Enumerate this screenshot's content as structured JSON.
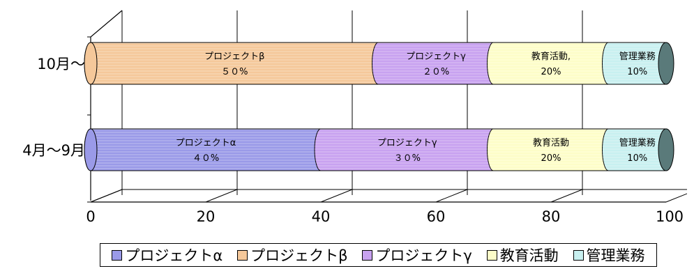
{
  "chart_data": {
    "type": "bar",
    "orientation": "horizontal",
    "stacked": true,
    "style": "3d-cylinder",
    "categories": [
      "10月～",
      "4月～9月"
    ],
    "series": [
      {
        "name": "プロジェクトα",
        "color": "#9a9ae8",
        "values": [
          0,
          40
        ],
        "labels": [
          "",
          "プロジェクトα\n４０%"
        ]
      },
      {
        "name": "プロジェクトβ",
        "color": "#f5c89a",
        "values": [
          50,
          0
        ],
        "labels": [
          "プロジェクトβ\n５０%",
          ""
        ]
      },
      {
        "name": "プロジェクトγ",
        "color": "#c8a2f0",
        "values": [
          20,
          30
        ],
        "labels": [
          "プロジェクトγ\n２０%",
          "プロジェクトγ\n３０%"
        ]
      },
      {
        "name": "教育活動",
        "color": "#fdfdc8",
        "values": [
          20,
          20
        ],
        "labels": [
          "教育活動,\n20%",
          "教育活動\n20%"
        ]
      },
      {
        "name": "管理業務",
        "color": "#c8f0f0",
        "values": [
          10,
          10
        ],
        "labels": [
          "管理業務\n10%",
          "管理業務\n10%"
        ]
      }
    ],
    "xlim": [
      0,
      100
    ],
    "xticks": [
      "0",
      "20",
      "40",
      "60",
      "80",
      "100"
    ],
    "grid": true,
    "legend_position": "bottom"
  }
}
